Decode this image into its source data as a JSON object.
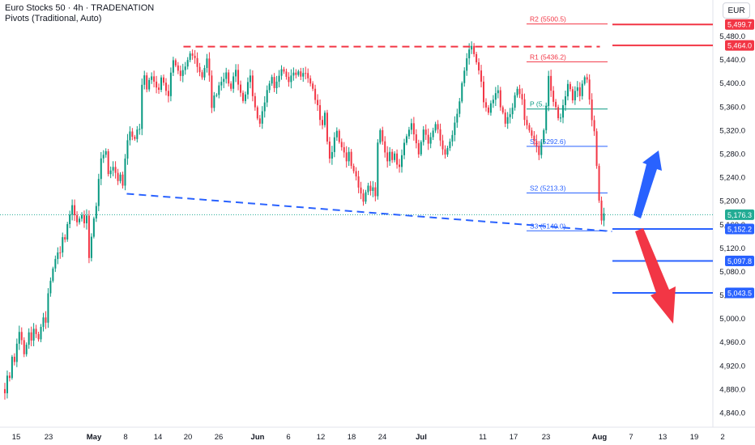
{
  "header": {
    "title": "Euro Stocks 50 · 4h · TRADENATION",
    "indicator": "Pivots (Traditional, Auto)"
  },
  "currency_button": "EUR",
  "colors": {
    "up": "#089981",
    "down": "#f23645",
    "resistance": "#f23645",
    "support": "#2962ff",
    "pivot": "#089981",
    "price": "#22ab94"
  },
  "chart_data": {
    "type": "candlestick",
    "title": "Euro Stocks 50 · 4h · TRADENATION",
    "ylim": [
      4820,
      5520
    ],
    "y_ticks": [
      "5,480.0",
      "5,440.0",
      "5,400.0",
      "5,360.0",
      "5,320.0",
      "5,280.0",
      "5,240.0",
      "5,200.0",
      "5,160.0",
      "5,120.0",
      "5,080.0",
      "5,040.0",
      "5,000.0",
      "4,960.0",
      "4,920.0",
      "4,880.0",
      "4,840.0"
    ],
    "x_ticks": [
      "15",
      "23",
      "May",
      "8",
      "14",
      "20",
      "26",
      "Jun",
      "6",
      "12",
      "18",
      "24",
      "Jul",
      "11",
      "17",
      "23",
      "Aug",
      "7",
      "13",
      "19",
      "2"
    ],
    "candle_path": [
      [
        0,
        4880
      ],
      [
        3,
        4870
      ],
      [
        6,
        4905
      ],
      [
        9,
        4900
      ],
      [
        12,
        4935
      ],
      [
        15,
        4925
      ],
      [
        18,
        4955
      ],
      [
        21,
        4980
      ],
      [
        24,
        4965
      ],
      [
        27,
        4940
      ],
      [
        30,
        4955
      ],
      [
        33,
        4975
      ],
      [
        36,
        4960
      ],
      [
        39,
        4985
      ],
      [
        42,
        4975
      ],
      [
        45,
        4965
      ],
      [
        48,
        4985
      ],
      [
        51,
        5000
      ],
      [
        54,
        4990
      ],
      [
        57,
        5045
      ],
      [
        60,
        5065
      ],
      [
        63,
        5085
      ],
      [
        66,
        5100
      ],
      [
        69,
        5110
      ],
      [
        72,
        5115
      ],
      [
        75,
        5140
      ],
      [
        78,
        5135
      ],
      [
        81,
        5160
      ],
      [
        84,
        5175
      ],
      [
        87,
        5190
      ],
      [
        90,
        5178
      ],
      [
        93,
        5165
      ],
      [
        96,
        5170
      ],
      [
        99,
        5175
      ],
      [
        102,
        5160
      ],
      [
        105,
        5172
      ],
      [
        108,
        5105
      ],
      [
        111,
        5140
      ],
      [
        114,
        5170
      ],
      [
        117,
        5190
      ],
      [
        120,
        5235
      ],
      [
        123,
        5275
      ],
      [
        126,
        5280
      ],
      [
        129,
        5285
      ],
      [
        132,
        5245
      ],
      [
        135,
        5250
      ],
      [
        138,
        5255
      ],
      [
        141,
        5250
      ],
      [
        144,
        5235
      ],
      [
        147,
        5245
      ],
      [
        150,
        5225
      ],
      [
        153,
        5270
      ],
      [
        156,
        5300
      ],
      [
        159,
        5320
      ],
      [
        162,
        5310
      ],
      [
        165,
        5305
      ],
      [
        168,
        5320
      ],
      [
        171,
        5320
      ],
      [
        174,
        5400
      ],
      [
        177,
        5415
      ],
      [
        180,
        5390
      ],
      [
        183,
        5405
      ],
      [
        186,
        5410
      ],
      [
        189,
        5400
      ],
      [
        192,
        5395
      ],
      [
        195,
        5390
      ],
      [
        198,
        5410
      ],
      [
        201,
        5400
      ],
      [
        204,
        5385
      ],
      [
        207,
        5375
      ],
      [
        210,
        5420
      ],
      [
        213,
        5440
      ],
      [
        216,
        5430
      ],
      [
        219,
        5420
      ],
      [
        222,
        5410
      ],
      [
        225,
        5425
      ],
      [
        228,
        5430
      ],
      [
        231,
        5440
      ],
      [
        234,
        5450
      ],
      [
        237,
        5445
      ],
      [
        240,
        5440
      ],
      [
        243,
        5430
      ],
      [
        246,
        5420
      ],
      [
        249,
        5410
      ],
      [
        252,
        5425
      ],
      [
        255,
        5440
      ],
      [
        258,
        5410
      ],
      [
        261,
        5360
      ],
      [
        264,
        5380
      ],
      [
        267,
        5380
      ],
      [
        270,
        5395
      ],
      [
        273,
        5400
      ],
      [
        276,
        5410
      ],
      [
        279,
        5420
      ],
      [
        282,
        5400
      ],
      [
        285,
        5390
      ],
      [
        288,
        5410
      ],
      [
        291,
        5420
      ],
      [
        294,
        5400
      ],
      [
        297,
        5385
      ],
      [
        300,
        5370
      ],
      [
        303,
        5380
      ],
      [
        306,
        5400
      ],
      [
        309,
        5410
      ],
      [
        312,
        5380
      ],
      [
        315,
        5360
      ],
      [
        318,
        5340
      ],
      [
        321,
        5330
      ],
      [
        324,
        5350
      ],
      [
        327,
        5370
      ],
      [
        330,
        5390
      ],
      [
        333,
        5400
      ],
      [
        336,
        5410
      ],
      [
        339,
        5390
      ],
      [
        342,
        5400
      ],
      [
        345,
        5415
      ],
      [
        348,
        5425
      ],
      [
        351,
        5420
      ],
      [
        354,
        5410
      ],
      [
        357,
        5400
      ],
      [
        360,
        5410
      ],
      [
        363,
        5420
      ],
      [
        366,
        5415
      ],
      [
        369,
        5420
      ],
      [
        372,
        5410
      ],
      [
        375,
        5415
      ],
      [
        378,
        5420
      ],
      [
        381,
        5410
      ],
      [
        384,
        5400
      ],
      [
        387,
        5390
      ],
      [
        390,
        5370
      ],
      [
        393,
        5360
      ],
      [
        396,
        5340
      ],
      [
        399,
        5330
      ],
      [
        402,
        5350
      ],
      [
        405,
        5300
      ],
      [
        408,
        5270
      ],
      [
        411,
        5280
      ],
      [
        414,
        5310
      ],
      [
        417,
        5320
      ],
      [
        420,
        5300
      ],
      [
        423,
        5290
      ],
      [
        426,
        5280
      ],
      [
        429,
        5270
      ],
      [
        432,
        5285
      ],
      [
        435,
        5260
      ],
      [
        438,
        5250
      ],
      [
        441,
        5240
      ],
      [
        444,
        5220
      ],
      [
        447,
        5215
      ],
      [
        450,
        5200
      ],
      [
        453,
        5215
      ],
      [
        456,
        5225
      ],
      [
        459,
        5215
      ],
      [
        462,
        5220
      ],
      [
        465,
        5210
      ],
      [
        468,
        5300
      ],
      [
        471,
        5320
      ],
      [
        474,
        5300
      ],
      [
        477,
        5280
      ],
      [
        480,
        5270
      ],
      [
        483,
        5285
      ],
      [
        486,
        5270
      ],
      [
        489,
        5280
      ],
      [
        492,
        5260
      ],
      [
        495,
        5255
      ],
      [
        498,
        5280
      ],
      [
        501,
        5300
      ],
      [
        504,
        5310
      ],
      [
        507,
        5320
      ],
      [
        510,
        5330
      ],
      [
        513,
        5310
      ],
      [
        516,
        5300
      ],
      [
        519,
        5280
      ],
      [
        522,
        5300
      ],
      [
        525,
        5320
      ],
      [
        528,
        5310
      ],
      [
        531,
        5300
      ],
      [
        534,
        5310
      ],
      [
        537,
        5320
      ],
      [
        540,
        5330
      ],
      [
        543,
        5320
      ],
      [
        546,
        5300
      ],
      [
        549,
        5290
      ],
      [
        552,
        5280
      ],
      [
        555,
        5290
      ],
      [
        558,
        5300
      ],
      [
        561,
        5310
      ],
      [
        564,
        5330
      ],
      [
        567,
        5350
      ],
      [
        570,
        5370
      ],
      [
        573,
        5400
      ],
      [
        576,
        5420
      ],
      [
        579,
        5440
      ],
      [
        582,
        5460
      ],
      [
        585,
        5465
      ],
      [
        588,
        5450
      ],
      [
        591,
        5435
      ],
      [
        594,
        5420
      ],
      [
        597,
        5400
      ],
      [
        600,
        5370
      ],
      [
        603,
        5360
      ],
      [
        606,
        5350
      ],
      [
        609,
        5365
      ],
      [
        612,
        5370
      ],
      [
        615,
        5380
      ],
      [
        618,
        5390
      ],
      [
        621,
        5360
      ],
      [
        624,
        5350
      ],
      [
        627,
        5330
      ],
      [
        630,
        5340
      ],
      [
        633,
        5350
      ],
      [
        636,
        5360
      ],
      [
        639,
        5380
      ],
      [
        642,
        5390
      ],
      [
        645,
        5380
      ],
      [
        648,
        5370
      ],
      [
        651,
        5340
      ],
      [
        654,
        5330
      ],
      [
        657,
        5320
      ],
      [
        660,
        5310
      ],
      [
        663,
        5300
      ],
      [
        666,
        5290
      ],
      [
        669,
        5280
      ],
      [
        672,
        5300
      ],
      [
        675,
        5320
      ],
      [
        678,
        5360
      ],
      [
        681,
        5410
      ],
      [
        684,
        5390
      ],
      [
        687,
        5370
      ],
      [
        690,
        5360
      ],
      [
        693,
        5340
      ],
      [
        696,
        5340
      ],
      [
        699,
        5360
      ],
      [
        702,
        5380
      ],
      [
        705,
        5400
      ],
      [
        708,
        5390
      ],
      [
        711,
        5370
      ],
      [
        714,
        5385
      ],
      [
        717,
        5390
      ],
      [
        720,
        5380
      ],
      [
        723,
        5400
      ],
      [
        726,
        5410
      ],
      [
        729,
        5405
      ],
      [
        732,
        5370
      ],
      [
        735,
        5340
      ],
      [
        738,
        5320
      ],
      [
        741,
        5260
      ],
      [
        744,
        5200
      ],
      [
        747,
        5165
      ],
      [
        750,
        5176
      ]
    ],
    "annotations": {
      "resistance_dashed": {
        "from": [
          155,
          5462
        ],
        "to": [
          745,
          5462
        ]
      },
      "support_dashed": {
        "from": [
          155,
          5212
        ],
        "to": [
          760,
          5148
        ]
      }
    },
    "pivot_levels": [
      {
        "label": "R2 (5500.5)",
        "value": 5500.5,
        "color": "#f23645"
      },
      {
        "label": "R1 (5436.2)",
        "value": 5436.2,
        "color": "#f23645"
      },
      {
        "label": "P (5...",
        "value": 5356,
        "color": "#089981"
      },
      {
        "label": "S1 (5292.6)",
        "value": 5292.6,
        "color": "#2962ff"
      },
      {
        "label": "S2 (5213.3)",
        "value": 5213.3,
        "color": "#2962ff"
      },
      {
        "label": "S3 (5149.0)",
        "value": 5149.0,
        "color": "#2962ff"
      }
    ],
    "horizontal_levels": [
      {
        "value": 5499.7,
        "label": "5,499.7",
        "color": "#f23645"
      },
      {
        "value": 5464.0,
        "label": "5,464.0",
        "color": "#f23645"
      },
      {
        "value": 5152.2,
        "label": "5,152.2",
        "color": "#2962ff"
      },
      {
        "value": 5097.8,
        "label": "5,097.8",
        "color": "#2962ff"
      },
      {
        "value": 5043.5,
        "label": "5,043.5",
        "color": "#2962ff"
      }
    ],
    "current_price": {
      "value": 5176.3,
      "label": "5,176.3"
    },
    "arrows": [
      {
        "direction": "up",
        "color": "#2962ff"
      },
      {
        "direction": "down",
        "color": "#f23645"
      }
    ]
  }
}
